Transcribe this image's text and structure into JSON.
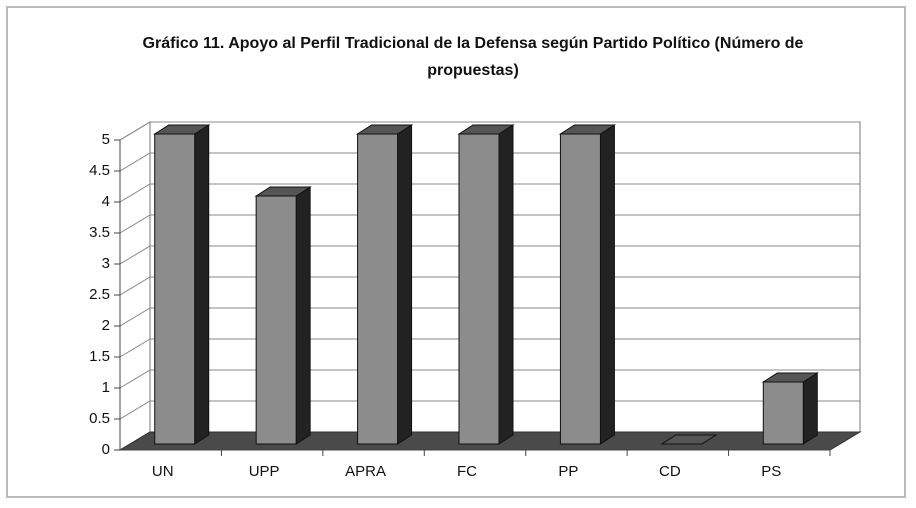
{
  "chart_data": {
    "type": "bar3d",
    "title": "Gráfico 11. Apoyo al Perfil Tradicional de la Defensa según Partido Político (Número de propuestas)",
    "categories": [
      "UN",
      "UPP",
      "APRA",
      "FC",
      "PP",
      "CD",
      "PS"
    ],
    "values": [
      5,
      4,
      5,
      5,
      5,
      0,
      1
    ],
    "color": "#8c8c8c",
    "ylim": [
      0,
      5
    ],
    "yticks": [
      0,
      0.5,
      1,
      1.5,
      2,
      2.5,
      3,
      3.5,
      4,
      4.5,
      5
    ],
    "grid": true
  }
}
